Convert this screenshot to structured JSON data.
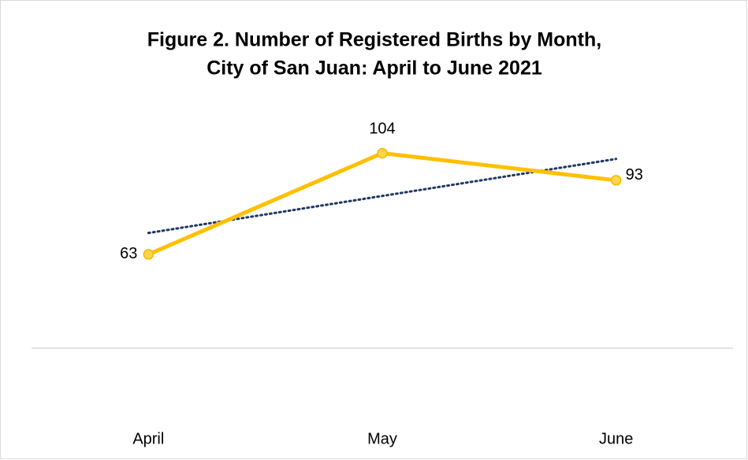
{
  "chart_data": {
    "type": "line",
    "title": [
      "Figure 2. Number of Registered Births by Month,",
      "City of San Juan: April to June 2021"
    ],
    "categories": [
      "April",
      "May",
      "June"
    ],
    "series": [
      {
        "name": "Registered Births",
        "color": "#ffc000",
        "values": [
          63,
          104,
          93
        ]
      }
    ],
    "ylim": [
      25,
      115
    ],
    "trendline": "linear",
    "trendline_color": "#1f3864",
    "grid": false,
    "legend": false
  }
}
